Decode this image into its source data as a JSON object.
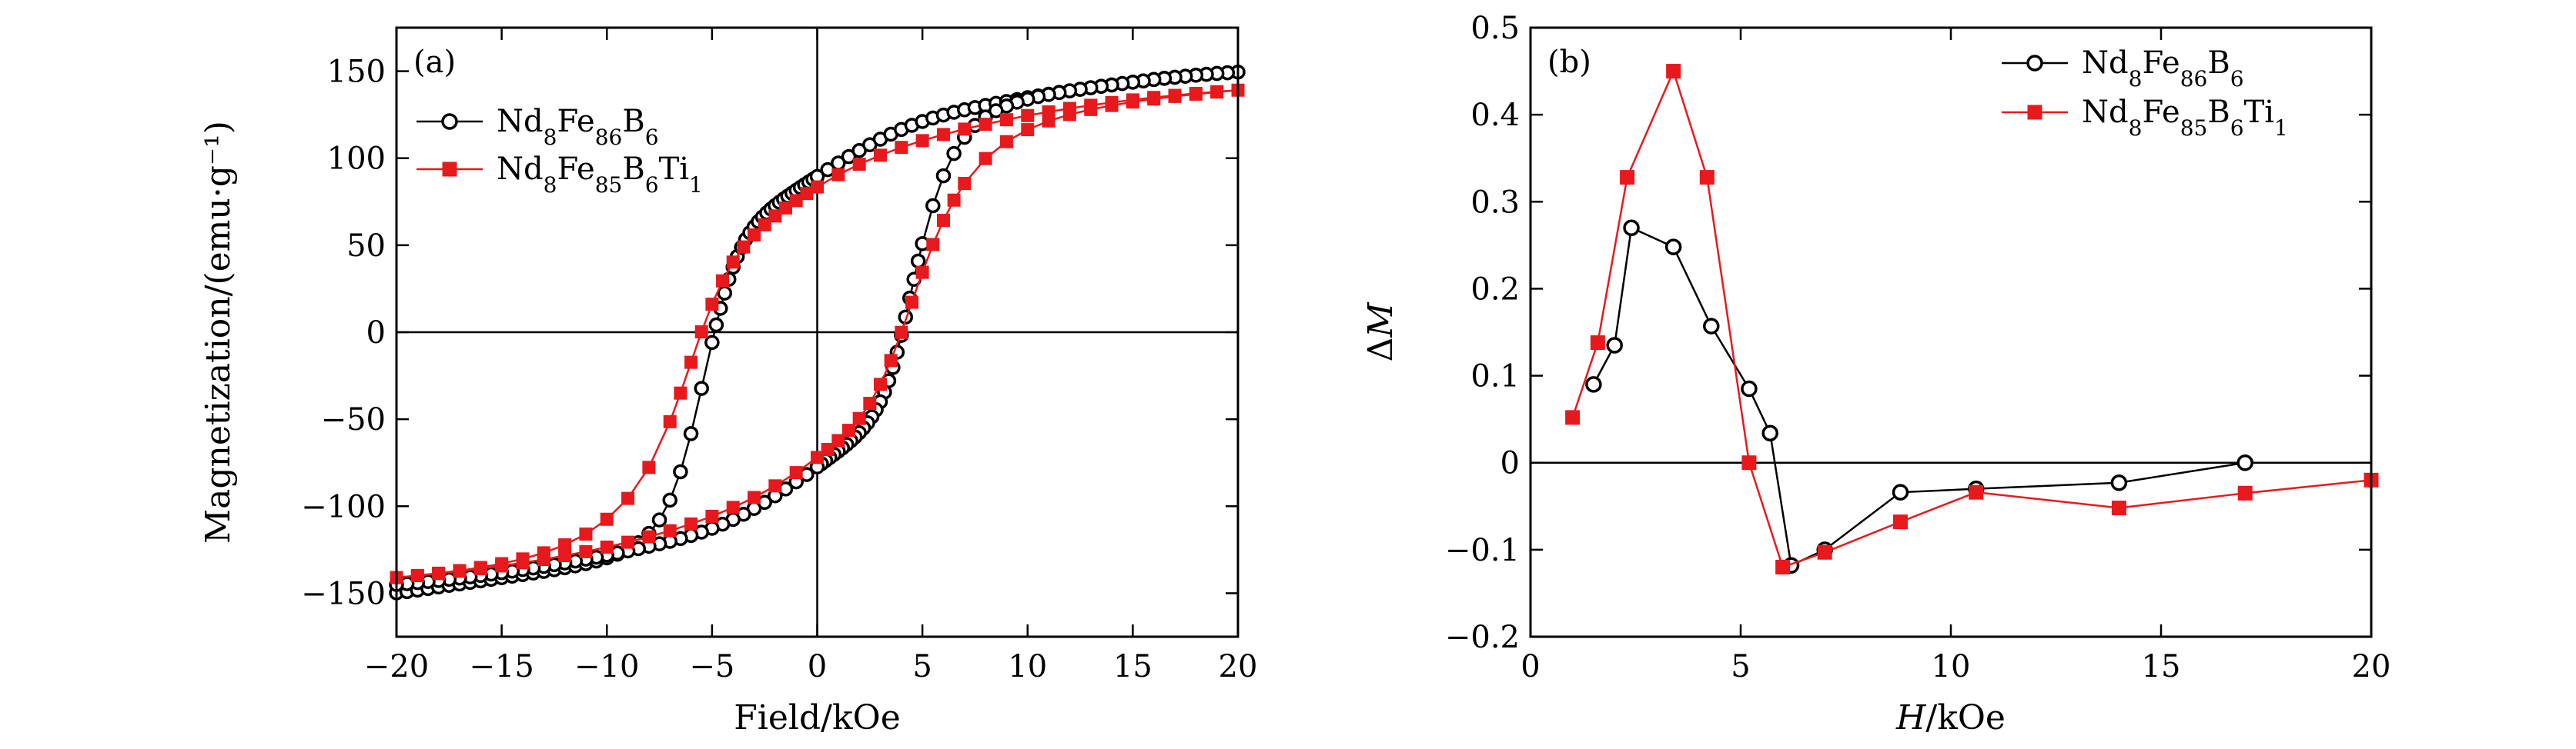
{
  "colors": {
    "series_a": "#000000",
    "series_b": "#e8191d"
  },
  "chart_data": [
    {
      "type": "line",
      "panel_label": "(a)",
      "xlabel": "Field/kOe",
      "ylabel": "Magnetization/(emu·g⁻¹)",
      "xlim": [
        -20,
        20
      ],
      "ylim": [
        -175,
        175
      ],
      "xticks": [
        -20,
        -15,
        -10,
        -5,
        0,
        5,
        10,
        15,
        20
      ],
      "xtick_labels": [
        "−20",
        "−15",
        "−10",
        "−5",
        "0",
        "5",
        "10",
        "15",
        "20"
      ],
      "yticks": [
        -150,
        -100,
        -50,
        0,
        50,
        100,
        150
      ],
      "ytick_labels": [
        "−150",
        "−100",
        "−50",
        "0",
        "50",
        "100",
        "150"
      ],
      "zero_lines": true,
      "legend": {
        "position": "top-left"
      },
      "series": [
        {
          "name": "Nd8Fe86B6",
          "legend_parts": [
            [
              "Nd",
              ""
            ],
            [
              "8",
              "sub"
            ],
            [
              "Fe",
              ""
            ],
            [
              "86",
              "sub"
            ],
            [
              "B",
              ""
            ],
            [
              "6",
              "sub"
            ]
          ],
          "marker": "open-circle",
          "color": "#000000",
          "x": [
            -20.0,
            -19.5,
            -19.0,
            -18.5,
            -18.0,
            -17.5,
            -17.0,
            -16.5,
            -16.0,
            -15.5,
            -15.0,
            -14.5,
            -14.0,
            -13.5,
            -13.0,
            -12.5,
            -12.0,
            -11.5,
            -11.0,
            -10.5,
            -10.0,
            -9.5,
            -9.0,
            -8.5,
            -8.0,
            -7.5,
            -7.0,
            -6.5,
            -6.0,
            -5.5,
            -5.0,
            -4.8,
            -4.6,
            -4.4,
            -4.2,
            -4.0,
            -3.8,
            -3.6,
            -3.4,
            -3.2,
            -3.0,
            -2.8,
            -2.6,
            -2.4,
            -2.2,
            -2.0,
            -1.8,
            -1.6,
            -1.4,
            -1.2,
            -1.0,
            -0.8,
            -0.6,
            -0.4,
            -0.2,
            0.0,
            0.5,
            1.0,
            1.5,
            2.0,
            2.5,
            3.0,
            3.5,
            4.0,
            4.5,
            5.0,
            5.5,
            6.0,
            6.5,
            7.0,
            7.5,
            8.0,
            8.5,
            9.0,
            9.5,
            10.0,
            10.5,
            11.0,
            11.5,
            12.0,
            12.5,
            13.0,
            13.5,
            14.0,
            14.5,
            15.0,
            15.5,
            16.0,
            16.5,
            17.0,
            17.5,
            18.0,
            18.5,
            19.0,
            19.5,
            20.0,
            19.5,
            19.0,
            18.5,
            18.0,
            17.5,
            17.0,
            16.5,
            16.0,
            15.5,
            15.0,
            14.5,
            14.0,
            13.5,
            13.0,
            12.5,
            12.0,
            11.5,
            11.0,
            10.5,
            10.0,
            9.5,
            9.0,
            8.5,
            8.0,
            7.5,
            7.0,
            6.5,
            6.0,
            5.5,
            5.0,
            4.8,
            4.6,
            4.4,
            4.2,
            4.0,
            3.8,
            3.6,
            3.4,
            3.2,
            3.0,
            2.8,
            2.6,
            2.4,
            2.2,
            2.0,
            1.8,
            1.6,
            1.4,
            1.2,
            1.0,
            0.8,
            0.6,
            0.4,
            0.2,
            0.0,
            -0.5,
            -1.0,
            -1.5,
            -2.0,
            -2.5,
            -3.0,
            -3.5,
            -4.0,
            -4.5,
            -5.0,
            -5.5,
            -6.0,
            -6.5,
            -7.0,
            -7.5,
            -8.0,
            -8.5,
            -9.0,
            -9.5,
            -10.0,
            -10.5,
            -11.0,
            -11.5,
            -12.0,
            -12.5,
            -13.0,
            -13.5,
            -14.0,
            -14.5,
            -15.0,
            -15.5,
            -16.0,
            -16.5,
            -17.0,
            -17.5,
            -18.0,
            -18.5,
            -19.0,
            -19.5,
            -20.0
          ],
          "y": [
            -149.8,
            -149.1,
            -148.2,
            -147.3,
            -146.4,
            -145.5,
            -144.7,
            -143.8,
            -142.9,
            -142.0,
            -141.1,
            -140.2,
            -139.3,
            -138.4,
            -137.5,
            -136.5,
            -135.4,
            -134.3,
            -133.0,
            -131.5,
            -129.7,
            -127.6,
            -124.8,
            -121.0,
            -115.6,
            -107.9,
            -96.5,
            -80.2,
            -58.3,
            -32.3,
            -5.9,
            4.2,
            13.7,
            22.5,
            30.4,
            37.4,
            43.5,
            48.7,
            53.3,
            57.2,
            60.6,
            63.6,
            66.2,
            68.6,
            70.8,
            72.8,
            74.7,
            76.5,
            78.2,
            79.9,
            81.6,
            83.2,
            84.8,
            86.4,
            87.9,
            89.5,
            93.4,
            97.2,
            100.9,
            104.4,
            107.7,
            110.9,
            113.8,
            116.5,
            118.9,
            121.1,
            123.1,
            124.8,
            126.4,
            127.8,
            129.1,
            130.3,
            131.5,
            132.6,
            133.7,
            134.8,
            135.8,
            136.8,
            137.8,
            138.7,
            139.6,
            140.5,
            141.3,
            142.1,
            142.9,
            143.7,
            144.4,
            145.2,
            145.9,
            146.5,
            147.1,
            147.7,
            148.2,
            148.7,
            149.1,
            149.5,
            149.1,
            148.7,
            148.2,
            147.7,
            147.1,
            146.5,
            145.9,
            145.2,
            144.4,
            143.7,
            142.9,
            142.1,
            141.3,
            140.5,
            139.6,
            138.7,
            137.7,
            136.6,
            135.4,
            133.9,
            132.2,
            130.0,
            127.3,
            123.7,
            118.8,
            112.0,
            102.7,
            89.9,
            72.7,
            50.9,
            40.9,
            30.4,
            19.6,
            8.7,
            -1.8,
            -11.5,
            -20.3,
            -27.9,
            -34.4,
            -40.0,
            -44.6,
            -48.6,
            -52.1,
            -55.1,
            -57.8,
            -60.2,
            -62.4,
            -64.5,
            -66.5,
            -68.4,
            -70.2,
            -72.0,
            -73.8,
            -75.6,
            -77.4,
            -81.8,
            -86.0,
            -90.1,
            -94.0,
            -97.8,
            -101.3,
            -104.6,
            -107.6,
            -110.3,
            -112.7,
            -114.9,
            -116.8,
            -118.6,
            -120.2,
            -121.6,
            -123.0,
            -124.4,
            -125.7,
            -126.9,
            -128.1,
            -129.3,
            -130.4,
            -131.5,
            -132.6,
            -133.6,
            -134.6,
            -135.5,
            -136.4,
            -137.3,
            -138.2,
            -139.0,
            -139.8,
            -140.6,
            -141.3,
            -142.0,
            -142.7,
            -143.3,
            -143.9,
            -144.5,
            -145.0
          ]
        },
        {
          "name": "Nd8Fe85B6Ti1",
          "legend_parts": [
            [
              "Nd",
              ""
            ],
            [
              "8",
              "sub"
            ],
            [
              "Fe",
              ""
            ],
            [
              "85",
              "sub"
            ],
            [
              "B",
              ""
            ],
            [
              "6",
              "sub"
            ],
            [
              "Ti",
              ""
            ],
            [
              "1",
              "sub"
            ]
          ],
          "marker": "filled-square",
          "color": "#e8191d",
          "x": [
            -20.0,
            -19.0,
            -18.0,
            -17.0,
            -16.0,
            -15.0,
            -14.0,
            -13.0,
            -12.0,
            -11.0,
            -10.0,
            -9.0,
            -8.0,
            -7.0,
            -6.5,
            -6.0,
            -5.5,
            -5.0,
            -4.5,
            -4.0,
            -3.5,
            -3.0,
            -2.5,
            -2.0,
            -1.5,
            -1.0,
            -0.5,
            0.0,
            1.0,
            2.0,
            3.0,
            4.0,
            5.0,
            6.0,
            7.0,
            8.0,
            9.0,
            10.0,
            11.0,
            12.0,
            13.0,
            14.0,
            15.0,
            16.0,
            17.0,
            18.0,
            19.0,
            20.0,
            19.0,
            18.0,
            17.0,
            16.0,
            15.0,
            14.0,
            13.0,
            12.0,
            11.0,
            10.0,
            9.0,
            8.0,
            7.0,
            6.5,
            6.0,
            5.5,
            5.0,
            4.5,
            4.0,
            3.5,
            3.0,
            2.5,
            2.0,
            1.5,
            1.0,
            0.5,
            0.0,
            -1.0,
            -2.0,
            -3.0,
            -4.0,
            -5.0,
            -6.0,
            -7.0,
            -8.0,
            -9.0,
            -10.0,
            -11.0,
            -12.0,
            -13.0,
            -14.0,
            -15.0,
            -16.0,
            -17.0,
            -18.0,
            -19.0,
            -20.0
          ],
          "y": [
            -141.0,
            -139.8,
            -138.5,
            -137.0,
            -135.2,
            -133.0,
            -130.3,
            -126.8,
            -122.2,
            -116.0,
            -107.5,
            -95.5,
            -77.7,
            -51.4,
            -35.0,
            -17.3,
            0.2,
            16.1,
            29.5,
            40.3,
            49.0,
            55.9,
            61.7,
            66.8,
            71.4,
            75.6,
            79.7,
            83.5,
            90.5,
            96.5,
            101.7,
            106.2,
            110.1,
            113.6,
            116.7,
            119.5,
            122.1,
            124.5,
            126.6,
            128.6,
            130.4,
            132.0,
            133.5,
            134.9,
            136.1,
            137.2,
            138.2,
            139.1,
            138.0,
            136.8,
            135.5,
            134.0,
            132.3,
            130.3,
            128.0,
            125.1,
            121.4,
            116.4,
            109.5,
            99.8,
            85.5,
            75.9,
            64.3,
            50.4,
            34.4,
            17.2,
            -0.1,
            -16.3,
            -30.0,
            -40.9,
            -49.6,
            -56.4,
            -62.3,
            -67.4,
            -72.0,
            -80.7,
            -88.3,
            -95.0,
            -100.7,
            -105.8,
            -110.2,
            -114.1,
            -117.6,
            -120.7,
            -123.5,
            -126.1,
            -128.4,
            -130.6,
            -132.5,
            -134.3,
            -135.9,
            -137.4,
            -138.7,
            -139.9,
            -141.0
          ]
        }
      ]
    },
    {
      "type": "line",
      "panel_label": "(b)",
      "xlabel_parts": [
        [
          "H",
          "italic"
        ],
        [
          "/kOe",
          ""
        ]
      ],
      "ylabel_parts": [
        [
          "Δ",
          ""
        ],
        [
          "M",
          "italic"
        ]
      ],
      "xlim": [
        0,
        20
      ],
      "ylim": [
        -0.2,
        0.5
      ],
      "xticks": [
        0,
        5,
        10,
        15,
        20
      ],
      "xtick_labels": [
        "0",
        "5",
        "10",
        "15",
        "20"
      ],
      "yticks": [
        -0.2,
        -0.1,
        0,
        0.1,
        0.2,
        0.3,
        0.4,
        0.5
      ],
      "ytick_labels": [
        "−0.2",
        "−0.1",
        "0",
        "0.1",
        "0.2",
        "0.3",
        "0.4",
        "0.5"
      ],
      "zero_lines": true,
      "legend": {
        "position": "top-right"
      },
      "series": [
        {
          "name": "Nd8Fe86B6",
          "legend_parts": [
            [
              "Nd",
              ""
            ],
            [
              "8",
              "sub"
            ],
            [
              "Fe",
              ""
            ],
            [
              "86",
              "sub"
            ],
            [
              "B",
              ""
            ],
            [
              "6",
              "sub"
            ]
          ],
          "marker": "open-circle",
          "color": "#000000",
          "x": [
            1.5,
            2.0,
            2.4,
            3.4,
            4.3,
            5.2,
            5.7,
            6.2,
            7.0,
            8.8,
            10.6,
            14.0,
            17.0
          ],
          "y": [
            0.09,
            0.135,
            0.27,
            0.248,
            0.157,
            0.085,
            0.034,
            -0.118,
            -0.1,
            -0.034,
            -0.03,
            -0.023,
            0.0
          ]
        },
        {
          "name": "Nd8Fe85B6Ti1",
          "legend_parts": [
            [
              "Nd",
              ""
            ],
            [
              "8",
              "sub"
            ],
            [
              "Fe",
              ""
            ],
            [
              "85",
              "sub"
            ],
            [
              "B",
              ""
            ],
            [
              "6",
              "sub"
            ],
            [
              "Ti",
              ""
            ],
            [
              "1",
              "sub"
            ]
          ],
          "marker": "filled-square",
          "color": "#e8191d",
          "x": [
            1.0,
            1.6,
            2.3,
            3.4,
            4.2,
            5.2,
            6.0,
            7.0,
            8.8,
            10.6,
            14.0,
            17.0,
            20.0
          ],
          "y": [
            0.052,
            0.138,
            0.328,
            0.45,
            0.328,
            0.0,
            -0.12,
            -0.103,
            -0.068,
            -0.034,
            -0.052,
            -0.035,
            -0.02
          ]
        }
      ]
    }
  ]
}
